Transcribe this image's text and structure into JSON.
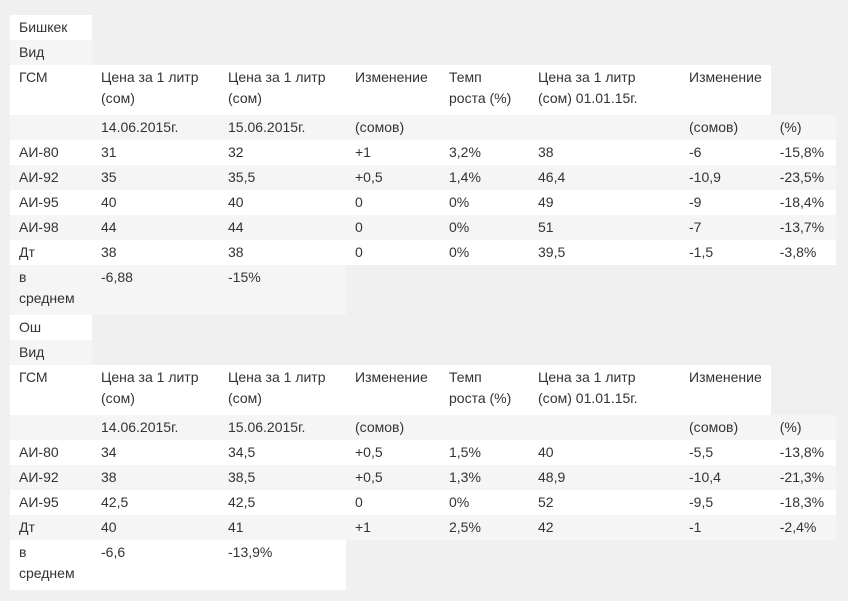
{
  "sections": [
    {
      "city": "Бишкек",
      "kind": "Вид",
      "header": [
        "ГСМ",
        "Цена за 1 литр (сом)",
        "Цена за 1 литр (сом)",
        "Изменение",
        "Темп роста (%)",
        "Цена за 1 литр (сом) 01.01.15г.",
        "Изменение",
        ""
      ],
      "subheader": [
        "",
        "14.06.2015г.",
        "15.06.2015г.",
        "(сомов)",
        "",
        "",
        "(сомов)",
        "(%)"
      ],
      "rows": [
        [
          "АИ-80",
          "31",
          "32",
          "+1",
          "3,2%",
          "38",
          "-6",
          "-15,8%"
        ],
        [
          "АИ-92",
          "35",
          "35,5",
          "+0,5",
          "1,4%",
          "46,4",
          "-10,9",
          "-23,5%"
        ],
        [
          "АИ-95",
          "40",
          "40",
          "0",
          "0%",
          "49",
          "-9",
          "-18,4%"
        ],
        [
          "АИ-98",
          "44",
          "44",
          "0",
          "0%",
          "51",
          "-7",
          "-13,7%"
        ],
        [
          "Дт",
          "38",
          "38",
          "0",
          "0%",
          "39,5",
          "-1,5",
          "-3,8%"
        ]
      ],
      "avg": [
        "в среднем",
        "-6,88",
        "-15%"
      ]
    },
    {
      "city": "Ош",
      "kind": "Вид",
      "header": [
        "ГСМ",
        "Цена за 1 литр (сом)",
        "Цена за 1 литр (сом)",
        "Изменение",
        "Темп роста (%)",
        "Цена за 1 литр (сом) 01.01.15г.",
        "Изменение",
        ""
      ],
      "subheader": [
        "",
        "14.06.2015г.",
        "15.06.2015г.",
        "(сомов)",
        "",
        "",
        "(сомов)",
        "(%)"
      ],
      "rows": [
        [
          "АИ-80",
          "34",
          "34,5",
          "+0,5",
          "1,5%",
          "40",
          "-5,5",
          "-13,8%"
        ],
        [
          "АИ-92",
          "38",
          "38,5",
          "+0,5",
          "1,3%",
          "48,9",
          "-10,4",
          "-21,3%"
        ],
        [
          "АИ-95",
          "42,5",
          "42,5",
          "0",
          "0%",
          "52",
          "-9,5",
          "-18,3%"
        ],
        [
          "Дт",
          "40",
          "41",
          "+1",
          "2,5%",
          "42",
          "-1",
          "-2,4%"
        ]
      ],
      "avg": [
        "в среднем",
        "-6,6",
        "-13,9%"
      ]
    }
  ]
}
